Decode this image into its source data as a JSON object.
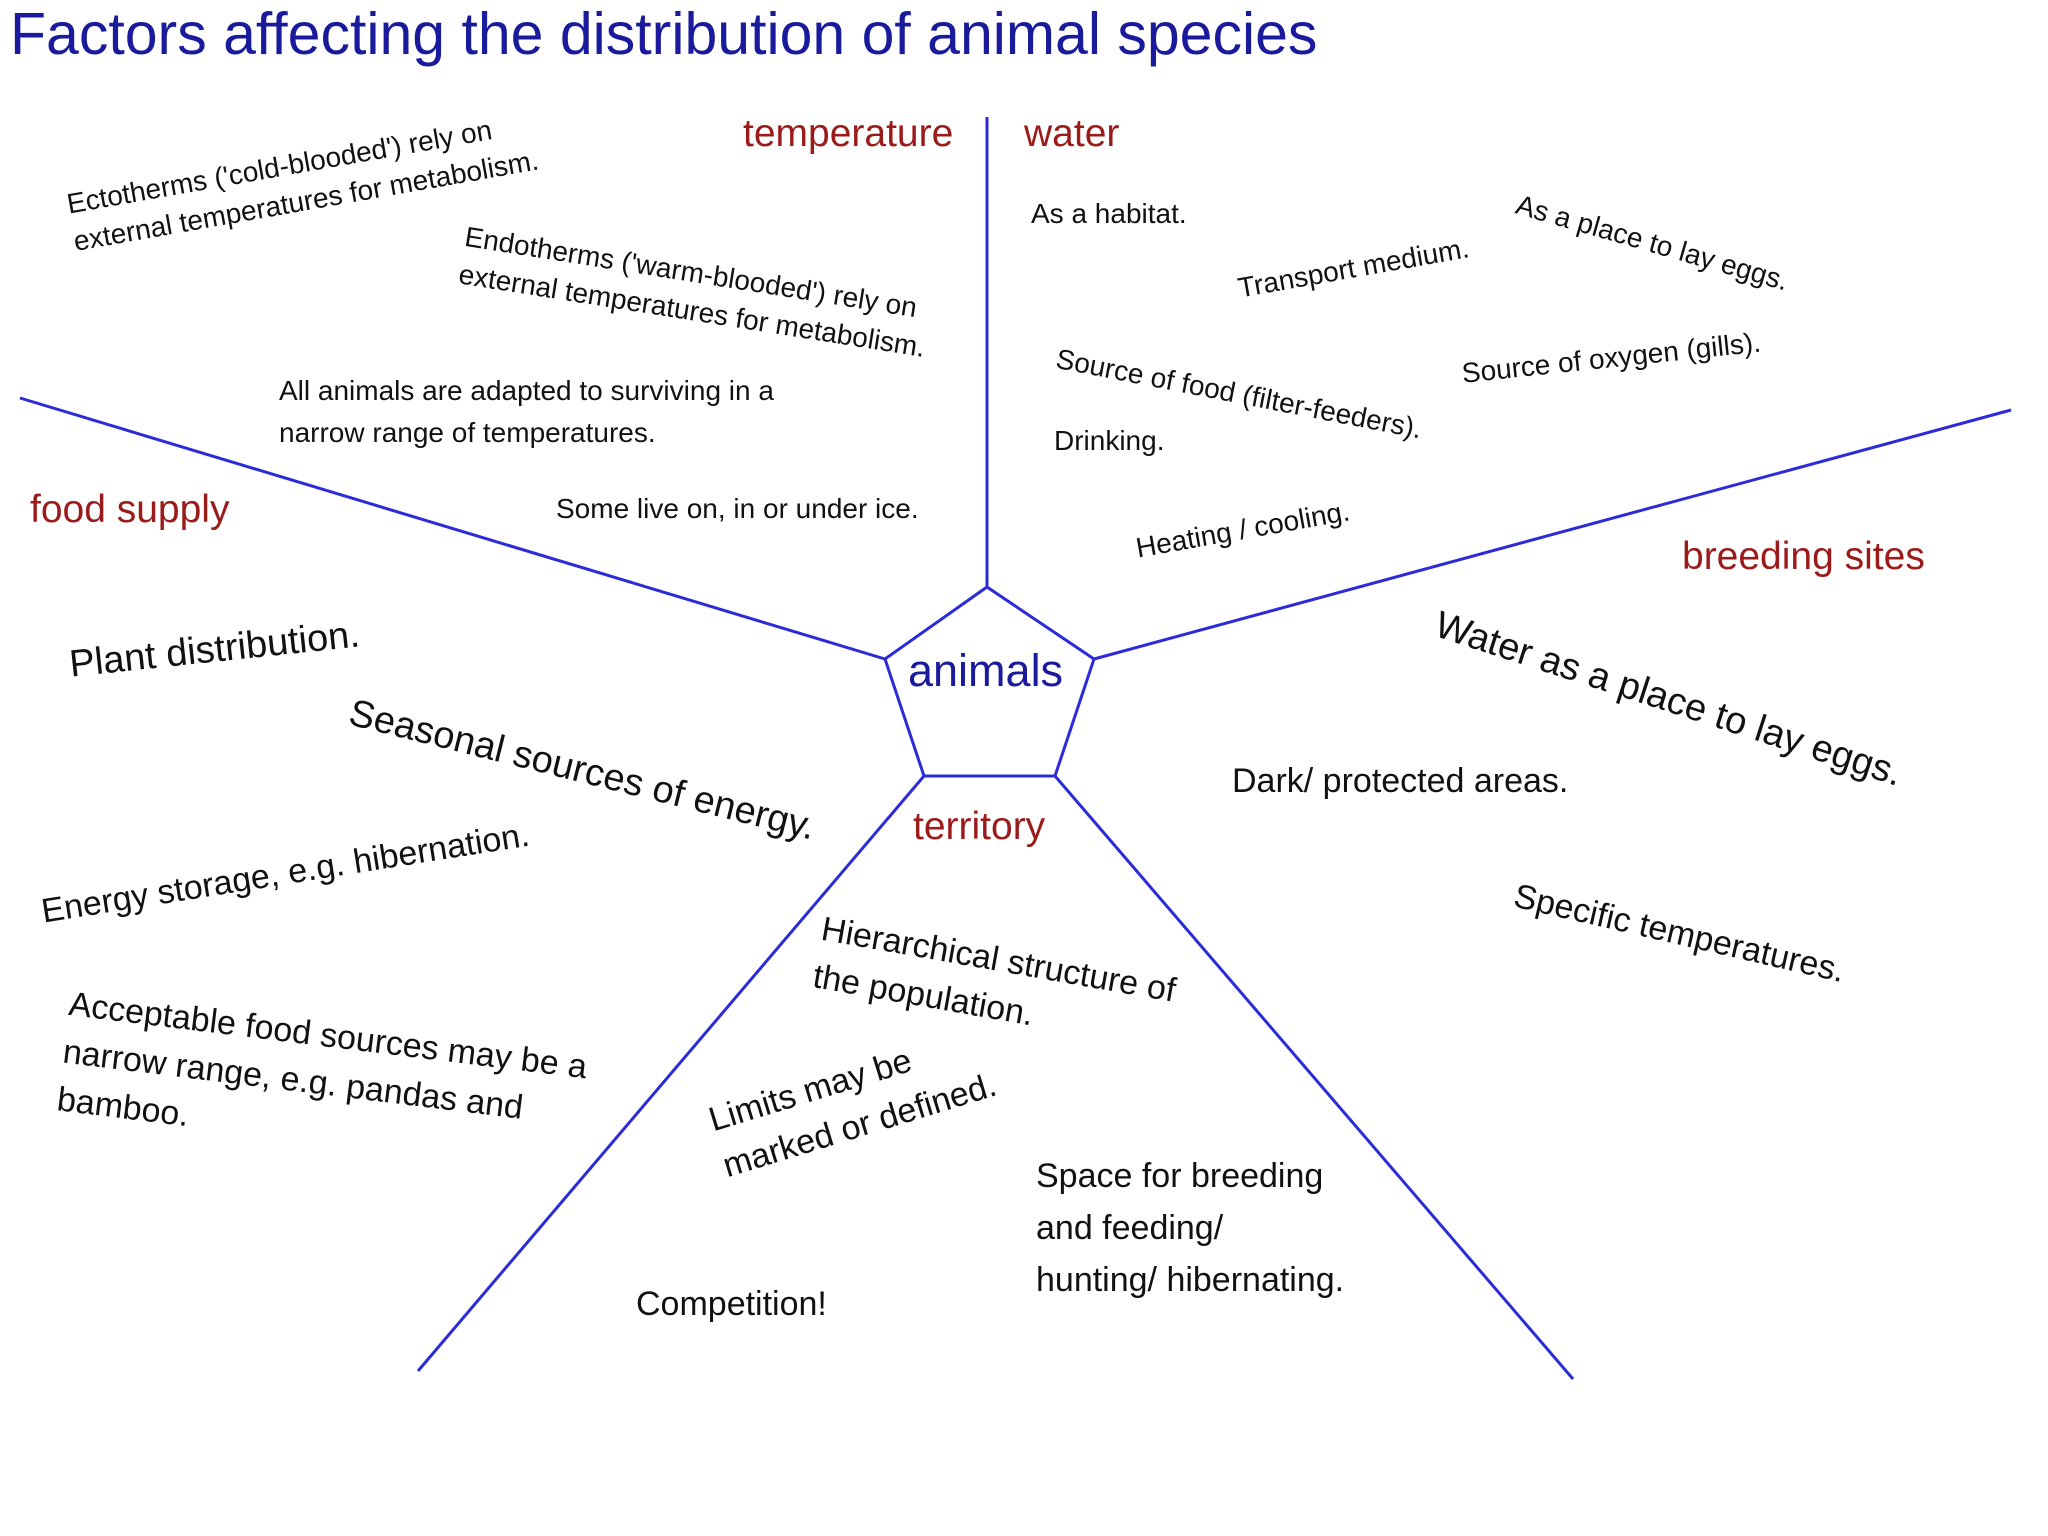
{
  "title": "Factors affecting the distribution of animal species",
  "center": "animals",
  "colors": {
    "title": "#1a1a9c",
    "headings": "#9b1b1b",
    "lines": "#2b2bd8",
    "text": "#111111"
  },
  "headings": {
    "temperature": "temperature",
    "water": "water",
    "food_supply": "food supply",
    "breeding_sites": "breeding sites",
    "territory": "territory"
  },
  "temperature_notes": {
    "ectotherms": [
      "Ectotherms ('cold-blooded') rely on",
      "external temperatures for metabolism."
    ],
    "endotherms": [
      "Endotherms ('warm-blooded') rely on",
      "external temperatures for metabolism."
    ],
    "adapted": [
      "All animals are adapted to surviving in a",
      "narrow range of temperatures."
    ],
    "ice": "Some live on, in or under ice."
  },
  "water_notes": {
    "habitat": "As a habitat.",
    "transport": "Transport medium.",
    "eggs": "As a place to lay eggs.",
    "oxygen": "Source of oxygen (gills).",
    "food": "Source of food (filter-feeders).",
    "drinking": "Drinking.",
    "heating": "Heating / cooling."
  },
  "food_notes": {
    "plants": "Plant distribution.",
    "seasonal": "Seasonal sources of energy.",
    "storage": "Energy storage, e.g. hibernation.",
    "acceptable": [
      "Acceptable food sources may be a",
      "narrow range, e.g. pandas and",
      "bamboo."
    ]
  },
  "breeding_notes": {
    "water": "Water as a place to lay eggs.",
    "dark": "Dark/ protected areas.",
    "specific": "Specific temperatures."
  },
  "territory_notes": {
    "hierarchy": [
      "Hierarchical structure of",
      "the population."
    ],
    "limits": [
      "Limits may be",
      "marked or defined."
    ],
    "space": [
      "Space for breeding",
      "and feeding/",
      "hunting/ hibernating."
    ],
    "competition": "Competition!"
  }
}
